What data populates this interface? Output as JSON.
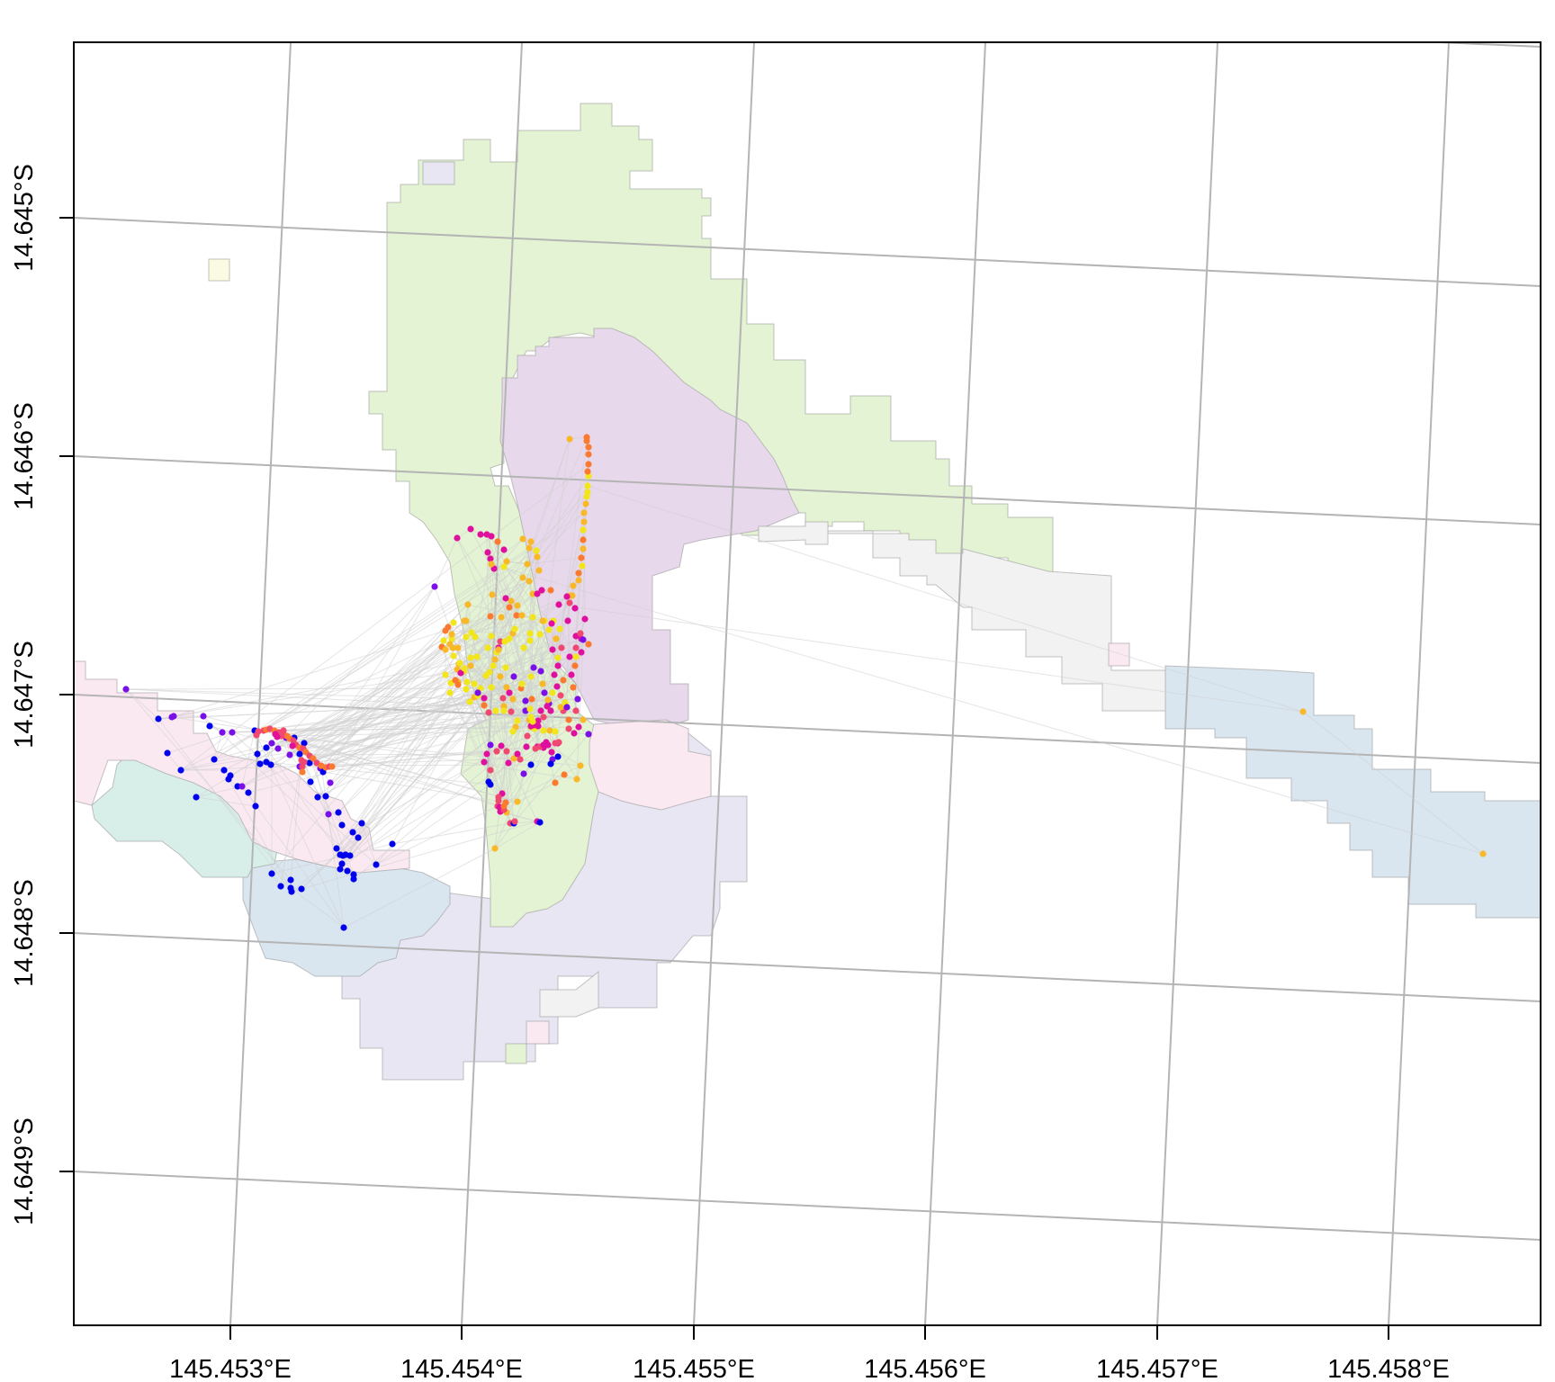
{
  "map": {
    "x_tick_labels": [
      "145.453°E",
      "145.454°E",
      "145.455°E",
      "145.456°E",
      "145.457°E",
      "145.458°E"
    ],
    "y_tick_labels": [
      "14.645°S",
      "14.646°S",
      "14.647°S",
      "14.648°S",
      "14.649°S"
    ],
    "colors": {
      "frame": "#000000",
      "graticule": "#b4b4b4",
      "track_line": "#d0d0d0",
      "zones": {
        "green": "#e3f3d3",
        "purple": "#e8d8ec",
        "lavender": "#e9e6f3",
        "blue": "#d9e6f0",
        "teal": "#d8efe9",
        "pink": "#fbe9f2",
        "grey": "#f2f2f2",
        "cream": "#fbfbe3"
      },
      "points": [
        "#0000ee",
        "#7a0fe8",
        "#e0109f",
        "#f04870",
        "#fb7a30",
        "#f8b828",
        "#f2e61a"
      ]
    }
  }
}
